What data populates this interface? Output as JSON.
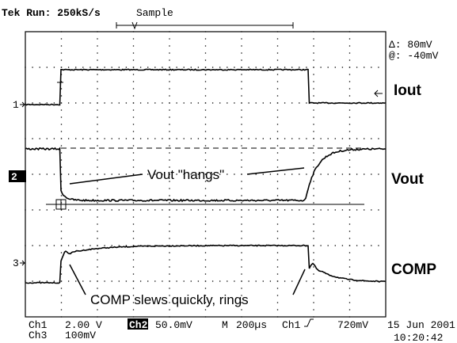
{
  "header": {
    "status": "Tek Run: 250kS/s",
    "mode": "Sample"
  },
  "cursor_readout": {
    "delta": "Δ: 80mV",
    "at": "@: -40mV"
  },
  "channels": [
    {
      "marker": "1",
      "label": "Iout"
    },
    {
      "marker": "2",
      "label": "Vout"
    },
    {
      "marker": "3",
      "label": "COMP"
    }
  ],
  "annotations": [
    "Vout \"hangs\"",
    "COMP slews quickly, rings"
  ],
  "footer": {
    "ch1": "Ch1",
    "ch1_scale": "2.00 V",
    "ch2": "Ch2",
    "ch2_scale": "50.0mV",
    "timebase_label": "M",
    "timebase": "200µs",
    "trigger_source": "Ch1",
    "trigger_level": "720mV",
    "ch3": "Ch3",
    "ch3_scale": "100mV",
    "date": "15 Jun 2001",
    "time": "10:20:42"
  }
}
